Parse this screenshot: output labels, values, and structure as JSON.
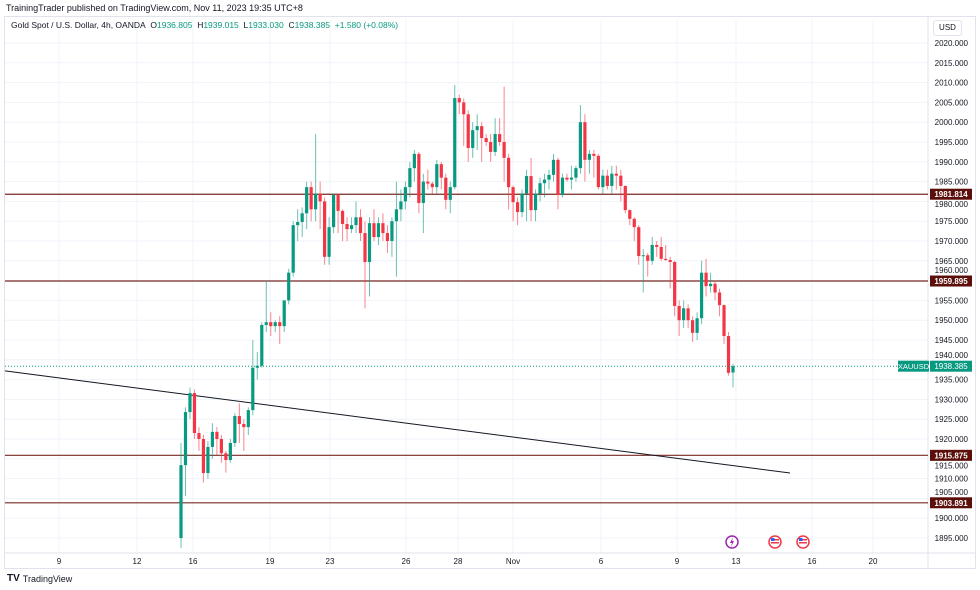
{
  "publisher_line": "TrainingTrader published on TradingView.com, Nov 11, 2023 19:35 UTC+8",
  "legend": {
    "symbol_desc": "Gold Spot / U.S. Dollar, 4h, OANDA",
    "o_label": "O",
    "o": "1936.805",
    "h_label": "H",
    "h": "1939.015",
    "l_label": "L",
    "l": "1933.030",
    "c_label": "C",
    "c": "1938.385",
    "change": "+1.580 (+0.08%)"
  },
  "currency": "USD",
  "footer": {
    "logo": "TradingView",
    "logo_mark": "TV"
  },
  "colors": {
    "up": "#089981",
    "down": "#f23645",
    "level": "#7a2a24",
    "level_label_bg": "#5b0e0a",
    "trendline": "#131722",
    "grid": "#f0f3fa"
  },
  "chart_data": {
    "type": "candlestick",
    "symbol": "XAUUSD",
    "timeframe": "4h",
    "ylim": [
      1890,
      2025
    ],
    "y_ticks": [
      "2020.000",
      "2015.000",
      "2010.000",
      "2005.000",
      "2000.000",
      "1995.000",
      "1990.000",
      "1985.000",
      "1980.000",
      "1975.000",
      "1970.000",
      "1965.000",
      "1960.000",
      "1955.000",
      "1950.000",
      "1945.000",
      "1940.000",
      "1935.000",
      "1930.000",
      "1925.000",
      "1920.000",
      "1915.000",
      "1910.000",
      "1905.000",
      "1900.000",
      "1895.000"
    ],
    "x_ticks": [
      "9",
      "12",
      "16",
      "19",
      "23",
      "26",
      "28",
      "Nov",
      "6",
      "9",
      "13",
      "16",
      "20"
    ],
    "grid": true,
    "last_price": {
      "label": "XAUUSD",
      "value": "1938.385"
    },
    "horizontal_levels": [
      "1981.814",
      "1959.895",
      "1915.875",
      "1903.891"
    ],
    "trendline": {
      "start_price": 1937.2,
      "end_price": 1911.4
    },
    "events": [
      {
        "icon": "lightning-event-icon"
      },
      {
        "icon": "us-flag-icon"
      },
      {
        "icon": "us-flag-icon"
      }
    ],
    "candles": [
      [
        1895,
        1919,
        1892.5,
        1913.4
      ],
      [
        1913.4,
        1928,
        1905.6,
        1926.8
      ],
      [
        1926.8,
        1933,
        1925,
        1931.6
      ],
      [
        1931.6,
        1932.5,
        1920,
        1921.5
      ],
      [
        1921.5,
        1923,
        1917,
        1920
      ],
      [
        1920,
        1921,
        1909,
        1911.4
      ],
      [
        1911.4,
        1919.5,
        1910,
        1918
      ],
      [
        1918,
        1924,
        1915,
        1921.8
      ],
      [
        1921.8,
        1923,
        1916,
        1920
      ],
      [
        1920,
        1921,
        1914,
        1916.4
      ],
      [
        1916.4,
        1917,
        1911.5,
        1914.7
      ],
      [
        1914.7,
        1920,
        1914,
        1919
      ],
      [
        1919,
        1926.5,
        1918,
        1925.8
      ],
      [
        1925.8,
        1929,
        1919,
        1923.8
      ],
      [
        1923.8,
        1925,
        1917,
        1923
      ],
      [
        1923,
        1928,
        1921,
        1927.3
      ],
      [
        1927.3,
        1945,
        1926,
        1938
      ],
      [
        1938,
        1942,
        1935,
        1938.5
      ],
      [
        1938.5,
        1949.5,
        1938,
        1948.8
      ],
      [
        1948.8,
        1960,
        1947,
        1949.5
      ],
      [
        1949.5,
        1952,
        1946,
        1948.5
      ],
      [
        1948.5,
        1950,
        1947,
        1949.5
      ],
      [
        1949.5,
        1951,
        1944,
        1948.5
      ],
      [
        1948.5,
        1955,
        1947,
        1955
      ],
      [
        1955,
        1963,
        1954,
        1962
      ],
      [
        1962,
        1975,
        1961,
        1974
      ],
      [
        1974,
        1978,
        1970,
        1974.8
      ],
      [
        1974.8,
        1978.5,
        1971,
        1977
      ],
      [
        1977,
        1985,
        1973,
        1983.6
      ],
      [
        1983.6,
        1985,
        1975,
        1978
      ],
      [
        1978,
        1997,
        1975,
        1982
      ],
      [
        1982,
        1985,
        1973,
        1980
      ],
      [
        1980,
        1981,
        1964,
        1966
      ],
      [
        1966,
        1976,
        1964,
        1973.5
      ],
      [
        1973.5,
        1982,
        1972,
        1981.6
      ],
      [
        1981.6,
        1982,
        1972,
        1977.6
      ],
      [
        1977.6,
        1978,
        1970,
        1974.3
      ],
      [
        1974.3,
        1976,
        1970,
        1973
      ],
      [
        1973,
        1976,
        1972,
        1974
      ],
      [
        1974,
        1980,
        1972,
        1976
      ],
      [
        1976,
        1978,
        1970,
        1972
      ],
      [
        1972,
        1975,
        1953,
        1964.7
      ],
      [
        1964.7,
        1976,
        1956,
        1974.5
      ],
      [
        1974.5,
        1978,
        1970,
        1971
      ],
      [
        1971,
        1976,
        1969,
        1974.5
      ],
      [
        1974.5,
        1977,
        1970,
        1972
      ],
      [
        1972,
        1974,
        1967,
        1970
      ],
      [
        1970,
        1976,
        1966,
        1975
      ],
      [
        1975,
        1985,
        1961,
        1978
      ],
      [
        1978,
        1983,
        1975,
        1980
      ],
      [
        1980,
        1985,
        1978,
        1983.6
      ],
      [
        1983.6,
        1990,
        1981,
        1988.4
      ],
      [
        1988.4,
        1993,
        1985,
        1992
      ],
      [
        1992,
        1992.5,
        1977,
        1979.6
      ],
      [
        1979.6,
        1987,
        1972,
        1985
      ],
      [
        1985,
        1988,
        1983,
        1984.5
      ],
      [
        1984.5,
        1985,
        1982,
        1983.6
      ],
      [
        1983.6,
        1990.5,
        1982,
        1989.4
      ],
      [
        1989.4,
        1990,
        1983,
        1986
      ],
      [
        1986,
        1987,
        1978,
        1980.4
      ],
      [
        1980.4,
        1985,
        1977,
        1983.6
      ],
      [
        1983.6,
        2009.4,
        1983,
        2006.1
      ],
      [
        2006.1,
        2007,
        2002,
        2005
      ],
      [
        2005,
        2006,
        1994,
        2002
      ],
      [
        2002,
        2003,
        1990,
        1993.5
      ],
      [
        1993.5,
        2000,
        1991,
        1998
      ],
      [
        1998,
        2002,
        1993,
        1999
      ],
      [
        1999,
        2000,
        1990,
        1996
      ],
      [
        1996,
        1997,
        1994,
        1995
      ],
      [
        1995,
        1997,
        1990,
        1992.5
      ],
      [
        1992.5,
        2001,
        1991.5,
        1997
      ],
      [
        1997,
        2001,
        1994,
        1995
      ],
      [
        1995,
        2009,
        1985,
        1991
      ],
      [
        1991,
        1992,
        1978,
        1983.6
      ],
      [
        1983.6,
        1984,
        1975,
        1979.8
      ],
      [
        1979.8,
        1981,
        1974,
        1977.3
      ],
      [
        1977.3,
        1983,
        1976,
        1982
      ],
      [
        1982,
        1988,
        1975,
        1986.4
      ],
      [
        1986.4,
        1991,
        1975,
        1977.8
      ],
      [
        1977.8,
        1983,
        1975,
        1982
      ],
      [
        1982,
        1986,
        1980,
        1984.6
      ],
      [
        1984.6,
        1987,
        1981,
        1985.5
      ],
      [
        1985.5,
        1988,
        1983,
        1986.7
      ],
      [
        1986.7,
        1992,
        1985,
        1990.5
      ],
      [
        1990.5,
        1991,
        1978,
        1981.6
      ],
      [
        1981.6,
        1987,
        1981,
        1986
      ],
      [
        1986,
        1987,
        1985,
        1985.5
      ],
      [
        1985.5,
        1989,
        1983,
        1986
      ],
      [
        1986,
        1989,
        1985,
        1988.4
      ],
      [
        1988.4,
        2004.3,
        1987,
        2000
      ],
      [
        2000,
        2002,
        1985,
        1990.5
      ],
      [
        1990.5,
        1993,
        1987,
        1992
      ],
      [
        1992,
        1993,
        1986,
        1991.5
      ],
      [
        1991.5,
        1992,
        1983,
        1983.6
      ],
      [
        1983.6,
        1988,
        1982,
        1986.5
      ],
      [
        1986.5,
        1988,
        1983,
        1983.9
      ],
      [
        1983.9,
        1989,
        1982,
        1987
      ],
      [
        1987,
        1989,
        1983,
        1986.5
      ],
      [
        1986.5,
        1988,
        1980,
        1983.9
      ],
      [
        1983.9,
        1984,
        1977,
        1977.8
      ],
      [
        1977.8,
        1978,
        1974,
        1975.6
      ],
      [
        1975.6,
        1976,
        1970,
        1973.5
      ],
      [
        1973.5,
        1974,
        1964,
        1966.2
      ],
      [
        1966.2,
        1968,
        1957,
        1966.4
      ],
      [
        1966.4,
        1967,
        1961,
        1965
      ],
      [
        1965,
        1971,
        1964,
        1969
      ],
      [
        1969,
        1970,
        1966,
        1968.5
      ],
      [
        1968.5,
        1971,
        1965,
        1965.5
      ],
      [
        1965.5,
        1969,
        1965,
        1965.2
      ],
      [
        1965.2,
        1966,
        1958,
        1964.7
      ],
      [
        1964.7,
        1965,
        1951,
        1953.6
      ],
      [
        1953.6,
        1955,
        1946,
        1950
      ],
      [
        1950,
        1955,
        1948,
        1953
      ],
      [
        1953,
        1954,
        1948,
        1950
      ],
      [
        1950,
        1951,
        1944.5,
        1946.8
      ],
      [
        1946.8,
        1952,
        1945,
        1950.5
      ],
      [
        1950.5,
        1965,
        1949,
        1962
      ],
      [
        1962,
        1965.5,
        1956,
        1958.6
      ],
      [
        1958.6,
        1962,
        1957,
        1959.2
      ],
      [
        1959.2,
        1960,
        1955,
        1957
      ],
      [
        1957,
        1958,
        1951,
        1953.8
      ],
      [
        1953.8,
        1954,
        1944,
        1946
      ],
      [
        1946,
        1947,
        1936,
        1936.7
      ],
      [
        1936.805,
        1939.015,
        1933.03,
        1938.385
      ]
    ]
  }
}
